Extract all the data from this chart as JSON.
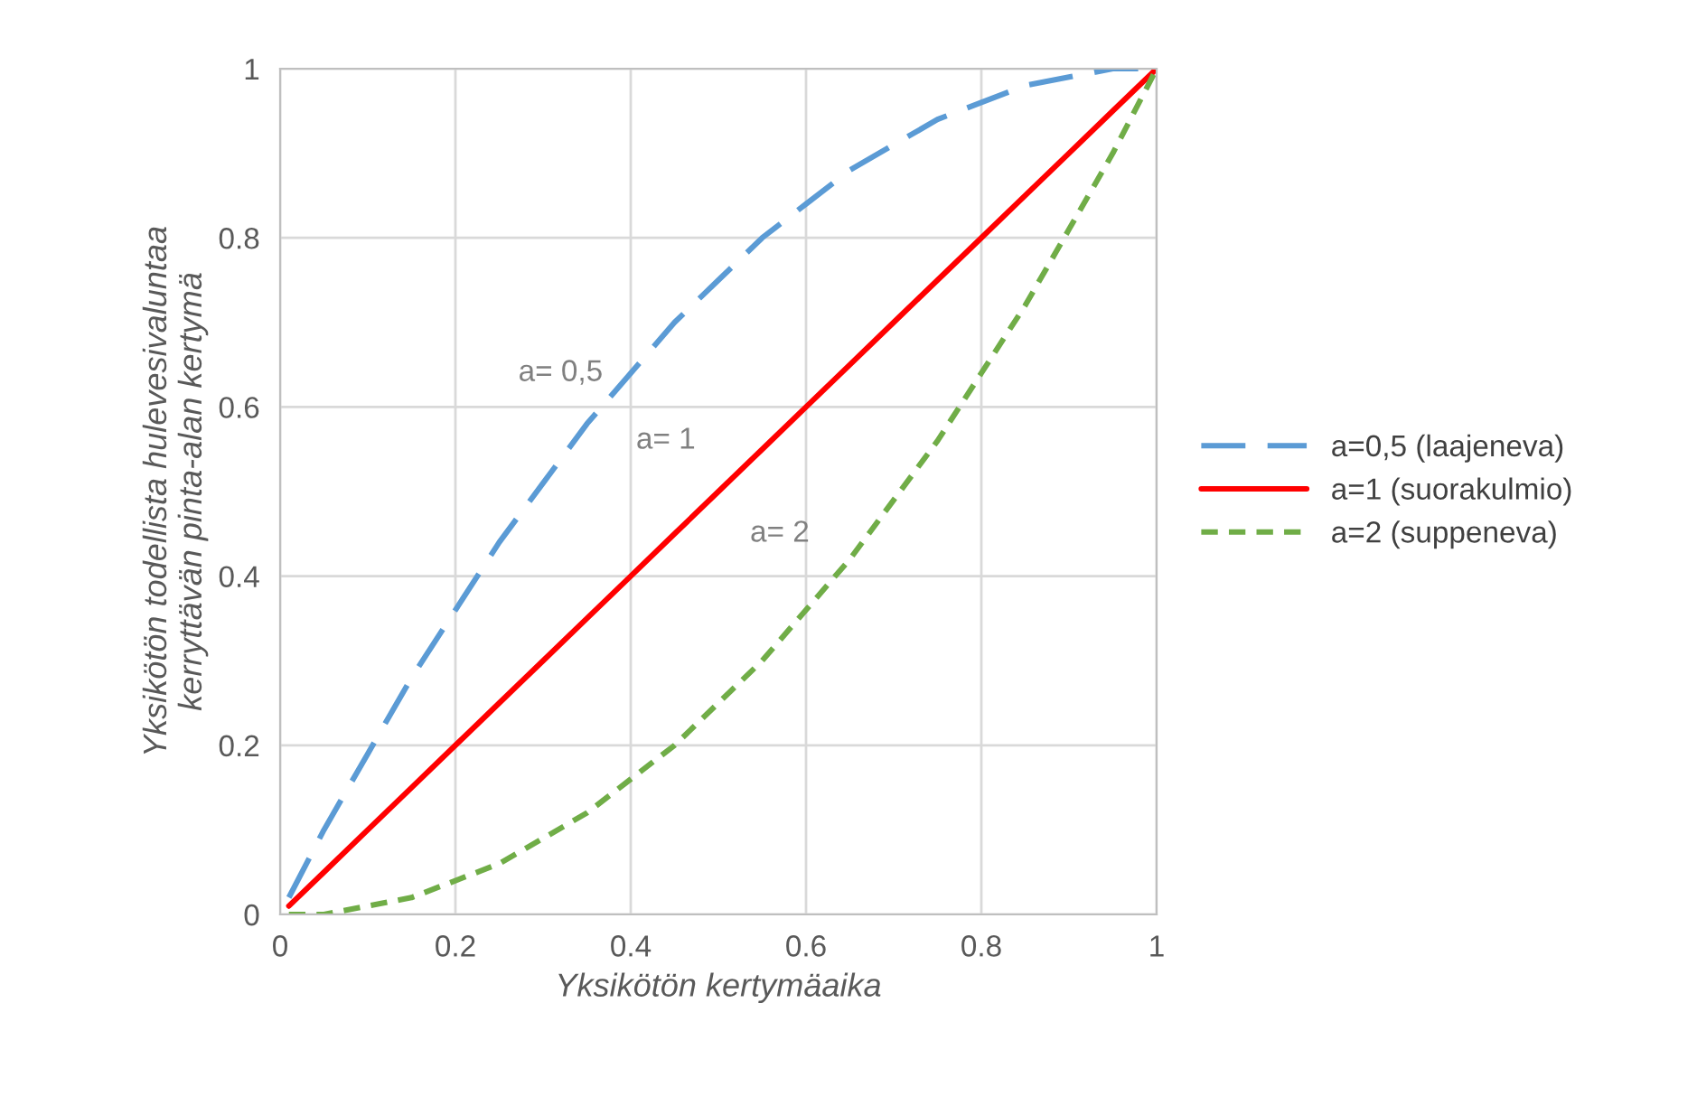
{
  "chart_data": {
    "type": "line",
    "xlabel": "Yksikötön kertymäaika",
    "ylabel": "Yksikötön todellista hulevesivaluntaa\nkerryttävän pinta-alan kertymä",
    "x": [
      0.01,
      0.05,
      0.1,
      0.15,
      0.2,
      0.25,
      0.3,
      0.35,
      0.4,
      0.45,
      0.5,
      0.55,
      0.6,
      0.65,
      0.7,
      0.75,
      0.8,
      0.85,
      0.9,
      0.95,
      1
    ],
    "series": [
      {
        "name": "a=0,5 (laajeneva)",
        "color": "#5b9bd5",
        "line_style": "dashed",
        "values": [
          0.02,
          0.1,
          0.19,
          0.28,
          0.36,
          0.44,
          0.51,
          0.58,
          0.64,
          0.7,
          0.75,
          0.8,
          0.84,
          0.88,
          0.91,
          0.94,
          0.96,
          0.98,
          0.99,
          1.0,
          1.0
        ]
      },
      {
        "name": "a=1 (suorakulmio)",
        "color": "#ff0000",
        "line_style": "solid",
        "values": [
          0.01,
          0.05,
          0.1,
          0.15,
          0.2,
          0.25,
          0.3,
          0.35,
          0.4,
          0.45,
          0.5,
          0.55,
          0.6,
          0.65,
          0.7,
          0.75,
          0.8,
          0.85,
          0.9,
          0.95,
          1.0
        ]
      },
      {
        "name": "a=2 (suppeneva)",
        "color": "#70ad47",
        "line_style": "dotted",
        "values": [
          0.0,
          0.0,
          0.01,
          0.02,
          0.04,
          0.06,
          0.09,
          0.12,
          0.16,
          0.2,
          0.25,
          0.3,
          0.36,
          0.42,
          0.49,
          0.56,
          0.64,
          0.72,
          0.81,
          0.9,
          1.0
        ]
      }
    ],
    "annotations": [
      "a= 0,5",
      "a= 1",
      "a= 2"
    ],
    "xlim": [
      0,
      1
    ],
    "ylim": [
      0,
      1
    ],
    "xticks": [
      0,
      0.2,
      0.4,
      0.6,
      0.8,
      1
    ],
    "yticks": [
      0,
      0.2,
      0.4,
      0.6,
      0.8,
      1
    ],
    "grid": true,
    "legend": "right",
    "marker": "none"
  }
}
